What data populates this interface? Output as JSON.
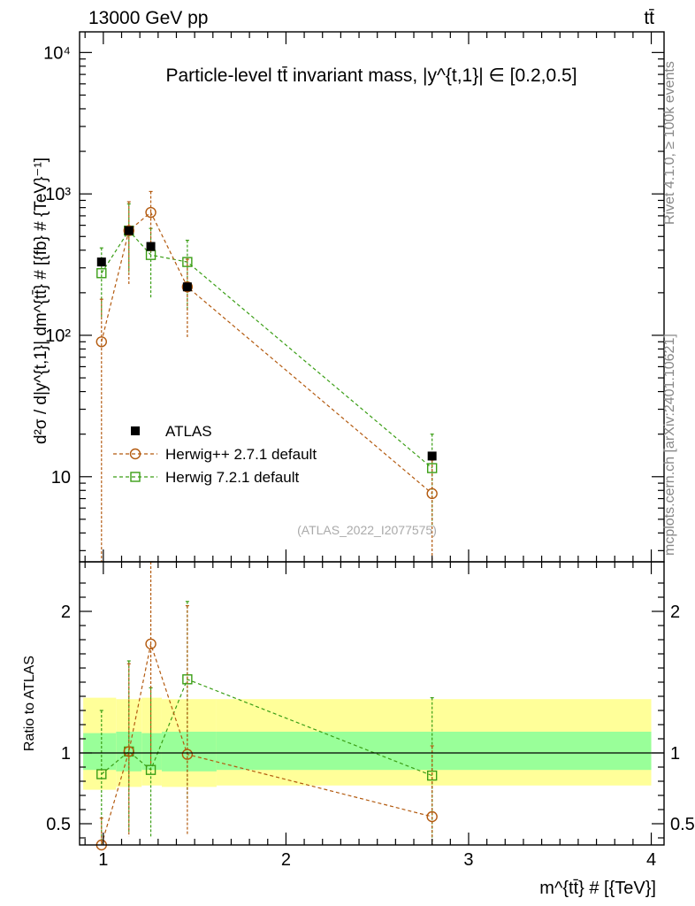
{
  "chart_data": [
    {
      "type": "scatter",
      "panel": "main",
      "top_left_label": "13000 GeV pp",
      "top_right_label": "tt̄",
      "title": "Particle-level tt̄ invariant mass, |y^{t,1}| ∈ [0.2,0.5]",
      "ylabel": "d²σ / d|y^{t,1}| dm^{tt̄} # [{fb} # {TeV}⁻¹]",
      "yscale": "log",
      "ylim": [
        2.5,
        14000
      ],
      "xlim": [
        0.87,
        4.07
      ],
      "ytick_labels": [
        "10",
        "10²",
        "10³",
        "10⁴"
      ],
      "ytick_values": [
        10,
        100,
        1000,
        10000
      ],
      "analysis_label": "(ATLAS_2022_I2077575)",
      "legend": [
        "ATLAS",
        "Herwig++ 2.7.1 default",
        "Herwig 7.2.1 default"
      ],
      "legend_placement": "lower-left",
      "series": [
        {
          "name": "ATLAS",
          "color": "#000000",
          "marker": "filled-square",
          "x": [
            0.99,
            1.14,
            1.26,
            1.46,
            2.8
          ],
          "y": [
            330,
            550,
            425,
            220,
            14
          ]
        },
        {
          "name": "Herwig++ 2.7.1 default",
          "color": "#b35a0f",
          "marker": "open-circle",
          "x": [
            0.99,
            1.14,
            1.26,
            1.46,
            2.8
          ],
          "y": [
            90,
            550,
            740,
            220,
            7.6
          ],
          "yerr_low": [
            90,
            320,
            350,
            125,
            5.5
          ],
          "yerr_high": [
            90,
            330,
            300,
            125,
            5.5
          ]
        },
        {
          "name": "Herwig 7.2.1 default",
          "color": "#3a9e15",
          "marker": "open-square",
          "x": [
            0.99,
            1.14,
            1.26,
            1.46,
            2.8
          ],
          "y": [
            275,
            550,
            370,
            330,
            11.5
          ],
          "yerr_low": [
            140,
            270,
            190,
            180,
            7
          ],
          "yerr_high": [
            140,
            300,
            200,
            140,
            8.5
          ]
        }
      ]
    },
    {
      "type": "scatter",
      "panel": "ratio",
      "ylabel": "Ratio to ATLAS",
      "xlabel": "m^{tt̄} # [{TeV}]",
      "xlim": [
        0.87,
        4.07
      ],
      "ylim": [
        0.35,
        2.35
      ],
      "xtick_labels": [
        "1",
        "2",
        "3",
        "4"
      ],
      "xtick_values": [
        1,
        2,
        3,
        4
      ],
      "ytick_labels": [
        "0.5",
        "1",
        "2"
      ],
      "ytick_values": [
        0.5,
        1,
        2
      ],
      "reference_line": 1,
      "bands": {
        "x_edges": [
          0.89,
          1.07,
          1.21,
          1.32,
          1.62,
          4.0
        ],
        "yellow_low": [
          0.74,
          0.76,
          0.77,
          0.76,
          0.77
        ],
        "yellow_high": [
          1.39,
          1.38,
          1.39,
          1.38,
          1.38
        ],
        "green_low": [
          0.88,
          0.87,
          0.88,
          0.87,
          0.88
        ],
        "green_high": [
          1.14,
          1.15,
          1.14,
          1.15,
          1.15
        ],
        "yellow_color": "#ffff99",
        "green_color": "#99ff99"
      },
      "series": [
        {
          "name": "Herwig++ 2.7.1 default",
          "color": "#b35a0f",
          "x": [
            0.99,
            1.14,
            1.26,
            1.46,
            2.8
          ],
          "y": [
            0.27,
            1.01,
            1.77,
            0.99,
            0.55
          ],
          "yerr_low": [
            0.27,
            0.6,
            0.85,
            0.57,
            0.45
          ],
          "yerr_high": [
            0.27,
            0.62,
            0.65,
            1.05,
            0.5
          ]
        },
        {
          "name": "Herwig 7.2.1 default",
          "color": "#3a9e15",
          "x": [
            0.99,
            1.14,
            1.26,
            1.46,
            2.8
          ],
          "y": [
            0.85,
            1.01,
            0.88,
            1.52,
            0.84
          ],
          "yerr_low": [
            0.85,
            0.58,
            0.48,
            0.85,
            0.5
          ],
          "yerr_high": [
            0.45,
            0.64,
            0.58,
            0.55,
            0.55
          ]
        }
      ]
    }
  ],
  "side_labels": {
    "rivet": "Rivet 4.1.0, ≥ 100k events",
    "mcplots": "mcplots.cern.ch [arXiv:2401.10621]"
  }
}
